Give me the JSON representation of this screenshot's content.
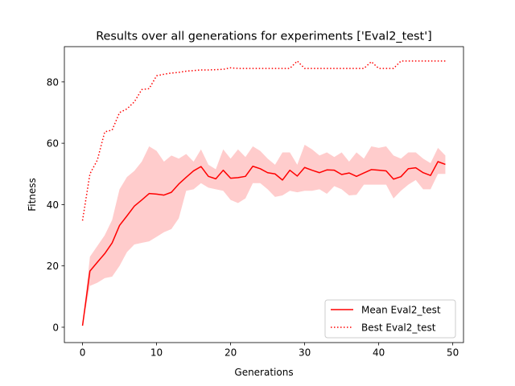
{
  "chart_data": {
    "type": "line",
    "title": "Results over all generations for experiments ['Eval2_test']",
    "xlabel": "Generations",
    "ylabel": "Fitness",
    "xlim": [
      -2.45,
      51.45
    ],
    "ylim": [
      -5,
      91.5
    ],
    "xticks": [
      0,
      10,
      20,
      30,
      40,
      50
    ],
    "yticks": [
      0,
      20,
      40,
      60,
      80
    ],
    "grid": false,
    "legend_position": "lower right",
    "x": [
      0,
      1,
      2,
      3,
      4,
      5,
      6,
      7,
      8,
      9,
      10,
      11,
      12,
      13,
      14,
      15,
      16,
      17,
      18,
      19,
      20,
      21,
      22,
      23,
      24,
      25,
      26,
      27,
      28,
      29,
      30,
      31,
      32,
      33,
      34,
      35,
      36,
      37,
      38,
      39,
      40,
      41,
      42,
      43,
      44,
      45,
      46,
      47,
      48,
      49
    ],
    "series": [
      {
        "name": "Mean Eval2_test",
        "style": "solid",
        "color": "#ff0000",
        "values": [
          0.5,
          18.3,
          21.2,
          24,
          27.5,
          33.2,
          36.3,
          39.5,
          41.5,
          43.6,
          43.4,
          43.1,
          44,
          46.7,
          48.9,
          51,
          52.4,
          49.2,
          48.4,
          51.2,
          48.6,
          48.8,
          49.2,
          52.5,
          51.7,
          50.4,
          50,
          48,
          51.2,
          49.3,
          52.1,
          51.2,
          50.4,
          51.3,
          51.2,
          49.8,
          50.3,
          49.2,
          50.3,
          51.4,
          51.2,
          51,
          48.3,
          49.1,
          51.7,
          52,
          50.4,
          49.5,
          54,
          53.1
        ]
      },
      {
        "name": "Best Eval2_test",
        "style": "dotted",
        "color": "#ff0000",
        "values": [
          34.8,
          50,
          54.5,
          63.7,
          64.3,
          70,
          71.2,
          73.5,
          77.5,
          77.8,
          82,
          82.5,
          82.9,
          83.1,
          83.5,
          83.7,
          83.9,
          83.9,
          84,
          84.1,
          84.6,
          84.4,
          84.4,
          84.4,
          84.4,
          84.4,
          84.4,
          84.4,
          84.4,
          86.8,
          84.4,
          84.4,
          84.4,
          84.4,
          84.4,
          84.4,
          84.4,
          84.4,
          84.4,
          86.6,
          84.4,
          84.4,
          84.4,
          86.8,
          86.8,
          86.8,
          86.8,
          86.8,
          86.8,
          86.8
        ]
      }
    ],
    "band": {
      "of_series": "Mean Eval2_test",
      "color": "#ffcccc",
      "upper": [
        0.5,
        23,
        26.5,
        30,
        35,
        45,
        49,
        51,
        54,
        59,
        57.5,
        54,
        56,
        55,
        56.5,
        54,
        58,
        53,
        51.5,
        58,
        55,
        58,
        55.5,
        59,
        57.5,
        55,
        53,
        57,
        57,
        53,
        59.5,
        58,
        56,
        57,
        55.5,
        57,
        54,
        57,
        55,
        59,
        58.5,
        59,
        56,
        55,
        57,
        57,
        55,
        53.5,
        58.5,
        56
      ],
      "lower": [
        0.5,
        13.5,
        14.5,
        16,
        16.5,
        20,
        24.5,
        27,
        27.5,
        28,
        29.5,
        31,
        32,
        35.5,
        44.5,
        45,
        47,
        45.5,
        45,
        44.5,
        41.5,
        40.5,
        42,
        47,
        47,
        45,
        42.5,
        43,
        44.5,
        44,
        44.5,
        44.5,
        45,
        43.5,
        46,
        45,
        43,
        43.2,
        46.5,
        46.5,
        46.5,
        46.5,
        42,
        44.5,
        46.5,
        48,
        45,
        45,
        50,
        50
      ]
    }
  }
}
